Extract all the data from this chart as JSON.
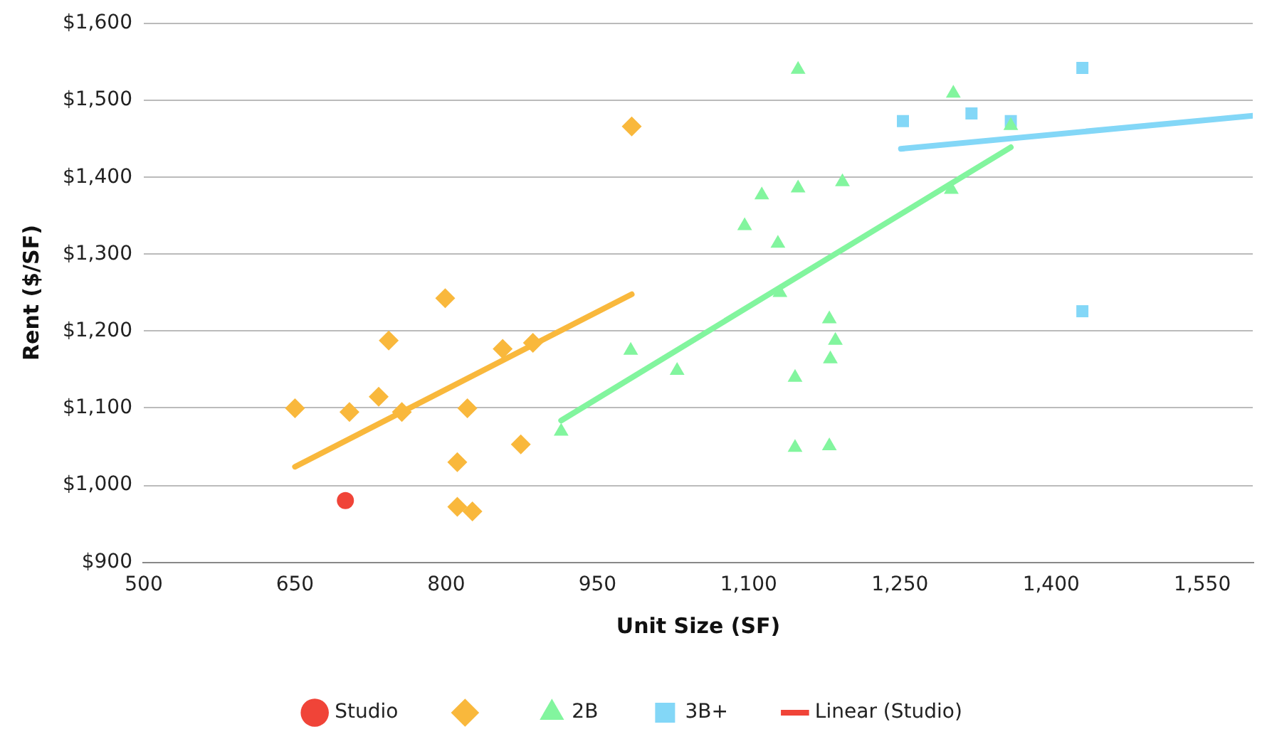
{
  "chart_data": {
    "type": "scatter",
    "xlabel": "Unit Size (SF)",
    "ylabel": "Rent ($/SF)",
    "xlim": [
      500,
      1600
    ],
    "xticks": [
      500,
      650,
      800,
      950,
      {
        "value": 1100,
        "label": "1,100"
      },
      {
        "value": 1250,
        "label": "1,250"
      },
      {
        "value": 1400,
        "label": "1,400"
      },
      {
        "value": 1550,
        "label": "1,550"
      }
    ],
    "ylim": [
      900,
      1600
    ],
    "yticks": [
      {
        "value": 900,
        "label": "$900"
      },
      {
        "value": 1000,
        "label": "$1,000"
      },
      {
        "value": 1100,
        "label": "$1,100"
      },
      {
        "value": 1200,
        "label": "$1,200"
      },
      {
        "value": 1300,
        "label": "$1,300"
      },
      {
        "value": 1400,
        "label": "$1,400"
      },
      {
        "value": 1500,
        "label": "$1,500"
      },
      {
        "value": 1600,
        "label": "$1,600"
      }
    ],
    "grid": "y",
    "legend": "bottom",
    "series": [
      {
        "name": "Studio",
        "marker": "circle",
        "color": "#f04438",
        "x": [
          700
        ],
        "values": [
          980
        ]
      },
      {
        "marker": "diamond",
        "color": "#f9b83c",
        "x": [
          650,
          704,
          733,
          743,
          756,
          799,
          821,
          811,
          811,
          826,
          856,
          886,
          874,
          984
        ],
        "values": [
          1100,
          1095,
          1115,
          1188,
          1095,
          1243,
          1100,
          1030,
          972,
          966,
          1177,
          1185,
          1053,
          1466
        ]
      },
      {
        "name": "2B",
        "marker": "triangle",
        "color": "#82f59e",
        "x": [
          914,
          983,
          1029,
          1149,
          1113,
          1149,
          1193,
          1096,
          1129,
          1131,
          1180,
          1186,
          1181,
          1146,
          1146,
          1180,
          1303,
          1301,
          1360
        ],
        "values": [
          1070,
          1175,
          1149,
          1540,
          1377,
          1386,
          1394,
          1337,
          1314,
          1250,
          1216,
          1188,
          1164,
          1140,
          1049,
          1051,
          1509,
          1384,
          1467
        ]
      },
      {
        "name": "3B+",
        "marker": "square",
        "color": "#83d7f7",
        "x": [
          1253,
          1321,
          1360,
          1431,
          1431
        ],
        "values": [
          1473,
          1483,
          1473,
          1542,
          1226
        ]
      },
      {
        "name": "Linear (Studio)",
        "type": "line",
        "marker": "none",
        "color": "#f04438"
      },
      {
        "type": "line",
        "marker": "none",
        "color": "#f9b83c",
        "x": [
          650,
          984
        ],
        "values": [
          1024,
          1248
        ]
      },
      {
        "type": "line",
        "marker": "none",
        "color": "#82f59e",
        "x": [
          914,
          1360
        ],
        "values": [
          1084,
          1439
        ]
      },
      {
        "type": "line",
        "marker": "none",
        "color": "#83d7f7",
        "x": [
          1251,
          1600
        ],
        "values": [
          1437,
          1480
        ]
      }
    ]
  }
}
